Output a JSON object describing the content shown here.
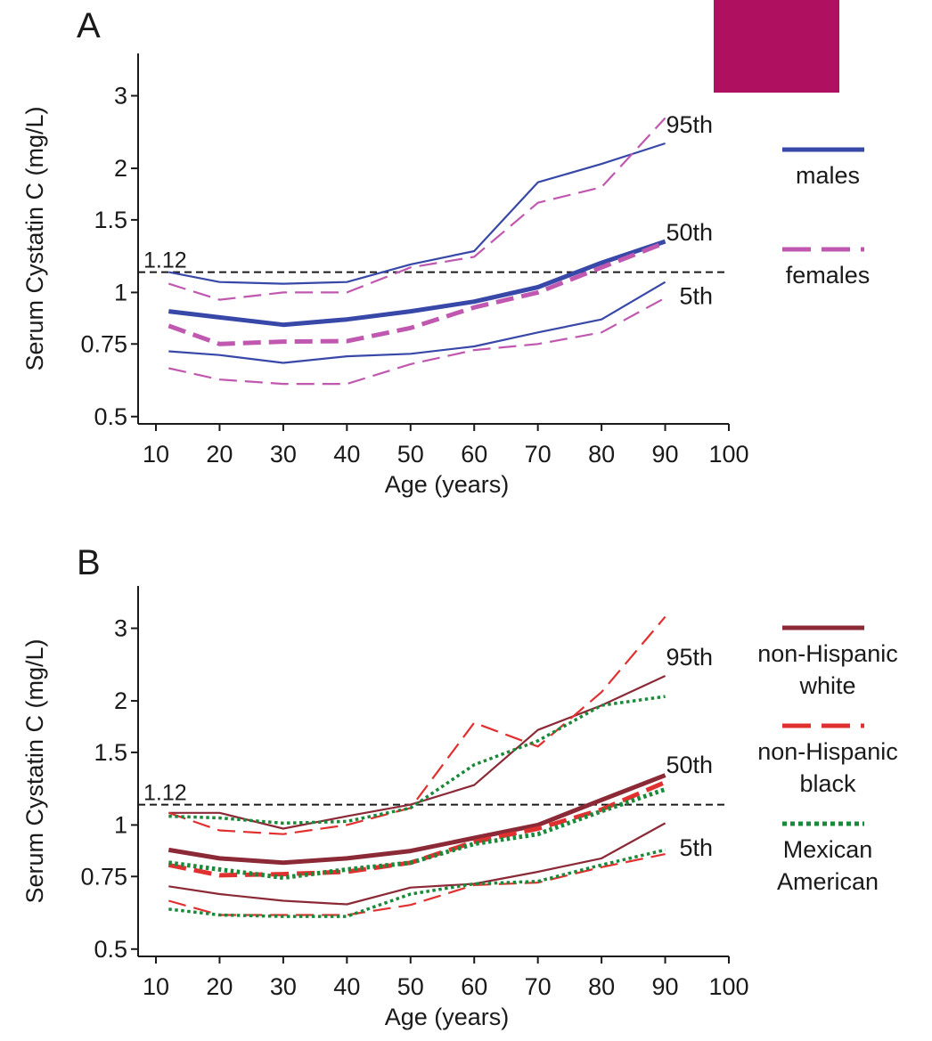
{
  "overlay_color": "#b01060",
  "reference_line": {
    "value": 1.12,
    "label": "1.12"
  },
  "colors": {
    "males": "#3848a8",
    "females": "#c058b0",
    "white": "#8b2a36",
    "black": "#e03030",
    "mexican": "#1a8a3a"
  },
  "chart_data": [
    {
      "panel": "A",
      "type": "line",
      "xlabel": "Age (years)",
      "ylabel": "Serum Cystatin C (mg/L)",
      "xlim": [
        10,
        100
      ],
      "ylim": [
        0.48,
        3.8
      ],
      "yscale": "log",
      "x_ticks": [
        10,
        20,
        30,
        40,
        50,
        60,
        70,
        80,
        90,
        100
      ],
      "y_ticks": [
        0.5,
        0.75,
        1,
        1.5,
        2,
        3
      ],
      "y_tick_labels": [
        "0.5",
        "0.75",
        "1",
        "1.5",
        "2",
        "3"
      ],
      "percentile_labels": [
        {
          "text": "95th",
          "y": 2.55
        },
        {
          "text": "50th",
          "y": 1.4
        },
        {
          "text": "5th",
          "y": 0.98
        }
      ],
      "legend": [
        {
          "label": "males",
          "color": "#3848a8",
          "style": "solid"
        },
        {
          "label": "females",
          "color": "#c058b0",
          "style": "dashed"
        }
      ],
      "series": [
        {
          "name": "males",
          "percentile": "95th",
          "color": "#3848a8",
          "style": "solid",
          "width": 2.2,
          "x": [
            12,
            20,
            30,
            40,
            50,
            60,
            70,
            80,
            90
          ],
          "y": [
            1.12,
            1.06,
            1.05,
            1.06,
            1.17,
            1.26,
            1.85,
            2.05,
            2.3
          ]
        },
        {
          "name": "males",
          "percentile": "50th",
          "color": "#3848a8",
          "style": "solid",
          "width": 5,
          "x": [
            12,
            20,
            30,
            40,
            50,
            60,
            70,
            80,
            90
          ],
          "y": [
            0.9,
            0.87,
            0.835,
            0.86,
            0.9,
            0.95,
            1.03,
            1.18,
            1.33
          ]
        },
        {
          "name": "males",
          "percentile": "5th",
          "color": "#3848a8",
          "style": "solid",
          "width": 2.2,
          "x": [
            12,
            20,
            30,
            40,
            50,
            60,
            70,
            80,
            90
          ],
          "y": [
            0.72,
            0.705,
            0.675,
            0.7,
            0.71,
            0.74,
            0.8,
            0.86,
            1.06
          ]
        },
        {
          "name": "females",
          "percentile": "95th",
          "color": "#c058b0",
          "style": "dashed",
          "width": 2.2,
          "x": [
            12,
            20,
            30,
            40,
            50,
            60,
            70,
            80,
            90
          ],
          "y": [
            1.05,
            0.96,
            1.0,
            1.0,
            1.15,
            1.22,
            1.65,
            1.8,
            2.65
          ]
        },
        {
          "name": "females",
          "percentile": "50th",
          "color": "#c058b0",
          "style": "dashed",
          "width": 5,
          "x": [
            12,
            20,
            30,
            40,
            50,
            60,
            70,
            80,
            90
          ],
          "y": [
            0.83,
            0.75,
            0.76,
            0.762,
            0.82,
            0.92,
            1.0,
            1.15,
            1.32
          ]
        },
        {
          "name": "females",
          "percentile": "5th",
          "color": "#c058b0",
          "style": "dashed",
          "width": 2.2,
          "x": [
            12,
            20,
            30,
            40,
            50,
            60,
            70,
            80,
            90
          ],
          "y": [
            0.655,
            0.615,
            0.6,
            0.6,
            0.67,
            0.725,
            0.75,
            0.8,
            0.97
          ]
        }
      ]
    },
    {
      "panel": "B",
      "type": "line",
      "xlabel": "Age (years)",
      "ylabel": "Serum Cystatin C (mg/L)",
      "xlim": [
        10,
        100
      ],
      "ylim": [
        0.48,
        3.8
      ],
      "yscale": "log",
      "x_ticks": [
        10,
        20,
        30,
        40,
        50,
        60,
        70,
        80,
        90,
        100
      ],
      "y_ticks": [
        0.5,
        0.75,
        1,
        1.5,
        2,
        3
      ],
      "y_tick_labels": [
        "0.5",
        "0.75",
        "1",
        "1.5",
        "2",
        "3"
      ],
      "percentile_labels": [
        {
          "text": "95th",
          "y": 2.55
        },
        {
          "text": "50th",
          "y": 1.4
        },
        {
          "text": "5th",
          "y": 0.88
        }
      ],
      "legend": [
        {
          "label": "non-Hispanic white",
          "lines": [
            "non-Hispanic",
            "white"
          ],
          "color": "#8b2a36",
          "style": "solid"
        },
        {
          "label": "non-Hispanic black",
          "lines": [
            "non-Hispanic",
            "black"
          ],
          "color": "#e03030",
          "style": "dashed"
        },
        {
          "label": "Mexican American",
          "lines": [
            "Mexican",
            "American"
          ],
          "color": "#1a8a3a",
          "style": "dotted"
        }
      ],
      "series": [
        {
          "name": "non-Hispanic white",
          "percentile": "95th",
          "color": "#8b2a36",
          "style": "solid",
          "width": 2.2,
          "x": [
            12,
            20,
            30,
            40,
            50,
            60,
            70,
            80,
            90
          ],
          "y": [
            1.07,
            1.07,
            0.98,
            1.05,
            1.12,
            1.25,
            1.7,
            1.95,
            2.3
          ]
        },
        {
          "name": "non-Hispanic white",
          "percentile": "50th",
          "color": "#8b2a36",
          "style": "solid",
          "width": 5,
          "x": [
            12,
            20,
            30,
            40,
            50,
            60,
            70,
            80,
            90
          ],
          "y": [
            0.87,
            0.83,
            0.81,
            0.83,
            0.865,
            0.93,
            1.0,
            1.15,
            1.32
          ]
        },
        {
          "name": "non-Hispanic white",
          "percentile": "5th",
          "color": "#8b2a36",
          "style": "solid",
          "width": 2.2,
          "x": [
            12,
            20,
            30,
            40,
            50,
            60,
            70,
            80,
            90
          ],
          "y": [
            0.71,
            0.68,
            0.655,
            0.642,
            0.705,
            0.72,
            0.77,
            0.83,
            1.01
          ]
        },
        {
          "name": "non-Hispanic black",
          "percentile": "95th",
          "color": "#e03030",
          "style": "dashed",
          "width": 2.2,
          "x": [
            12,
            20,
            30,
            40,
            50,
            60,
            70,
            80,
            90
          ],
          "y": [
            1.07,
            0.97,
            0.95,
            1.0,
            1.1,
            1.77,
            1.55,
            2.1,
            3.2
          ]
        },
        {
          "name": "non-Hispanic black",
          "percentile": "50th",
          "color": "#e03030",
          "style": "dashed",
          "width": 5,
          "x": [
            12,
            20,
            30,
            40,
            50,
            60,
            70,
            80,
            90
          ],
          "y": [
            0.8,
            0.755,
            0.76,
            0.77,
            0.81,
            0.91,
            0.98,
            1.09,
            1.27
          ]
        },
        {
          "name": "non-Hispanic black",
          "percentile": "5th",
          "color": "#e03030",
          "style": "dashed",
          "width": 2.2,
          "x": [
            12,
            20,
            30,
            40,
            50,
            60,
            70,
            80,
            90
          ],
          "y": [
            0.655,
            0.605,
            0.605,
            0.605,
            0.64,
            0.715,
            0.725,
            0.79,
            0.85
          ]
        },
        {
          "name": "Mexican American",
          "percentile": "95th",
          "color": "#1a8a3a",
          "style": "dotted",
          "width": 3.5,
          "x": [
            12,
            20,
            30,
            40,
            50,
            60,
            70,
            80,
            90
          ],
          "y": [
            1.05,
            1.04,
            1.01,
            1.02,
            1.1,
            1.4,
            1.6,
            1.95,
            2.05
          ]
        },
        {
          "name": "Mexican American",
          "percentile": "50th",
          "color": "#1a8a3a",
          "style": "dotted",
          "width": 5,
          "x": [
            12,
            20,
            30,
            40,
            50,
            60,
            70,
            80,
            90
          ],
          "y": [
            0.81,
            0.78,
            0.745,
            0.78,
            0.81,
            0.9,
            0.95,
            1.08,
            1.22
          ]
        },
        {
          "name": "Mexican American",
          "percentile": "5th",
          "color": "#1a8a3a",
          "style": "dotted",
          "width": 3.5,
          "x": [
            12,
            20,
            30,
            40,
            50,
            60,
            70,
            80,
            90
          ],
          "y": [
            0.625,
            0.605,
            0.6,
            0.6,
            0.68,
            0.72,
            0.73,
            0.8,
            0.87
          ]
        }
      ]
    }
  ]
}
